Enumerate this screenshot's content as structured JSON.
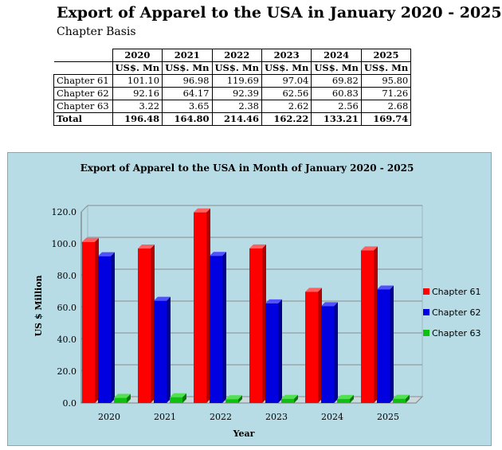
{
  "header": {
    "title": "Export of Apparel to the USA in January 2020 - 2025",
    "subtitle": "Chapter Basis"
  },
  "table": {
    "years": [
      "2020",
      "2021",
      "2022",
      "2023",
      "2024",
      "2025"
    ],
    "unit": "US$. Mn",
    "rows": [
      {
        "label": "Chapter 61",
        "values": [
          "101.10",
          "96.98",
          "119.69",
          "97.04",
          "69.82",
          "95.80"
        ]
      },
      {
        "label": "Chapter 62",
        "values": [
          "92.16",
          "64.17",
          "92.39",
          "62.56",
          "60.83",
          "71.26"
        ]
      },
      {
        "label": "Chapter 63",
        "values": [
          "3.22",
          "3.65",
          "2.38",
          "2.62",
          "2.56",
          "2.68"
        ]
      }
    ],
    "total": {
      "label": "Total",
      "values": [
        "196.48",
        "164.80",
        "214.46",
        "162.22",
        "133.21",
        "169.74"
      ]
    }
  },
  "chart_data": {
    "type": "bar",
    "title": "Export of Apparel to the USA in Month of January 2020 - 2025",
    "xlabel": "Year",
    "ylabel": "US $ Million",
    "categories": [
      "2020",
      "2021",
      "2022",
      "2023",
      "2024",
      "2025"
    ],
    "ylim": [
      0,
      120
    ],
    "yticks": [
      "0.0",
      "20.0",
      "40.0",
      "60.0",
      "80.0",
      "100.0",
      "120.0"
    ],
    "grid": true,
    "legend_position": "right",
    "series": [
      {
        "name": "Chapter 61",
        "color": "#ff0000",
        "side": "#b00000",
        "top": "#ff6060",
        "values": [
          101.1,
          96.98,
          119.69,
          97.04,
          69.82,
          95.8
        ]
      },
      {
        "name": "Chapter 62",
        "color": "#0000e0",
        "side": "#000090",
        "top": "#5050ff",
        "values": [
          92.16,
          64.17,
          92.39,
          62.56,
          60.83,
          71.26
        ]
      },
      {
        "name": "Chapter 63",
        "color": "#10c010",
        "side": "#087808",
        "top": "#50e050",
        "values": [
          3.22,
          3.65,
          2.38,
          2.62,
          2.56,
          2.68
        ]
      }
    ]
  }
}
